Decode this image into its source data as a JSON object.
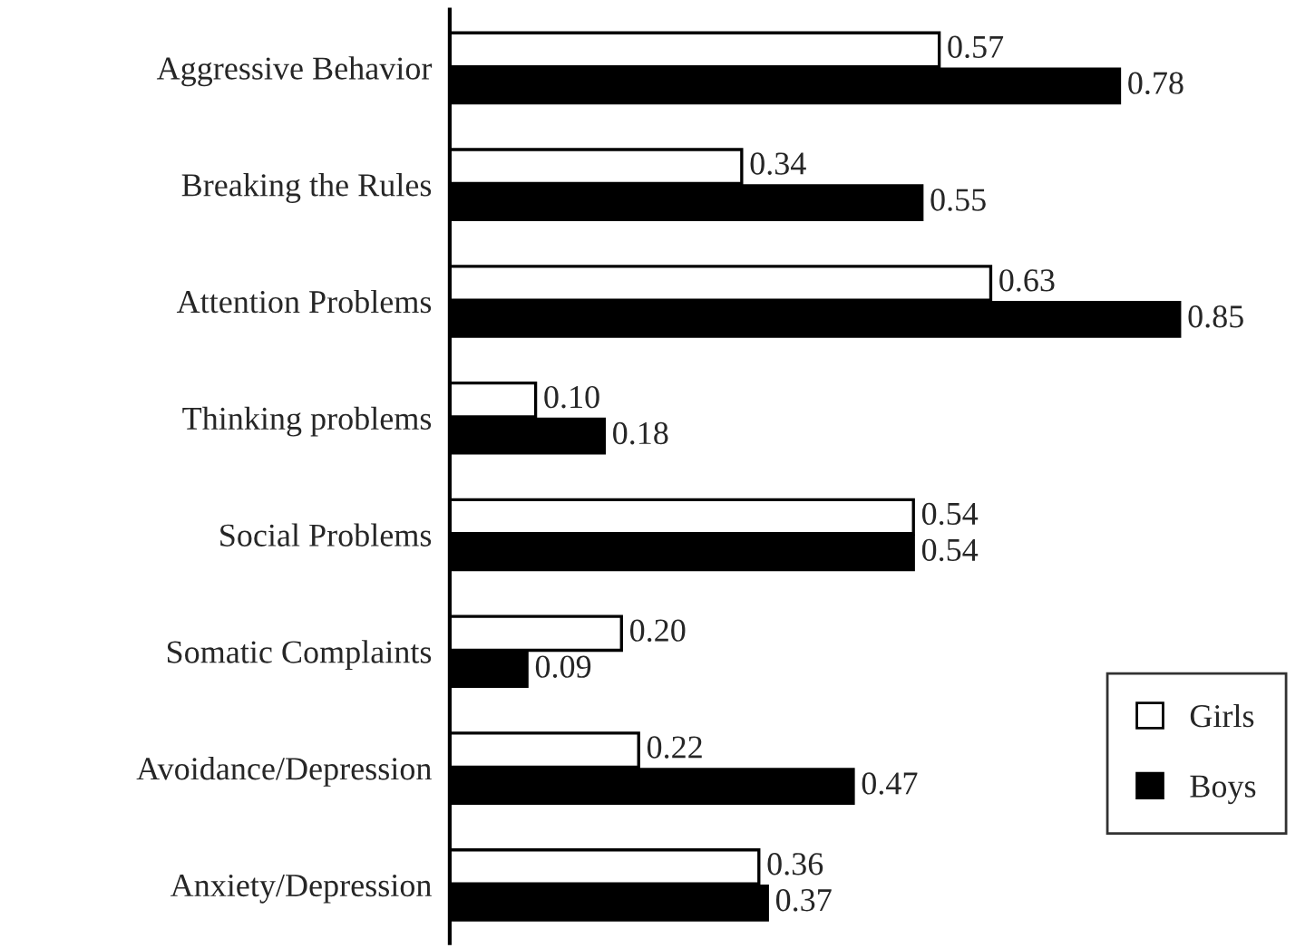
{
  "chart_data": {
    "type": "bar",
    "orientation": "horizontal",
    "categories": [
      "Aggressive Behavior",
      "Breaking the Rules",
      "Attention Problems",
      "Thinking problems",
      "Social Problems",
      "Somatic Complaints",
      "Avoidance/Depression",
      "Anxiety/Depression"
    ],
    "series": [
      {
        "name": "Girls",
        "color": "#ffffff",
        "values": [
          0.57,
          0.34,
          0.63,
          0.1,
          0.54,
          0.2,
          0.22,
          0.36
        ],
        "value_labels": [
          "0.57",
          "0.34",
          "0.63",
          "0.10",
          "0.54",
          "0.20",
          "0.22",
          "0.36"
        ]
      },
      {
        "name": "Boys",
        "color": "#000000",
        "values": [
          0.78,
          0.55,
          0.85,
          0.18,
          0.54,
          0.09,
          0.47,
          0.37
        ],
        "value_labels": [
          "0.78",
          "0.55",
          "0.85",
          "0.18",
          "0.54",
          "0.09",
          "0.47",
          "0.37"
        ]
      }
    ],
    "tick_labels": "y",
    "legend": "bottom right",
    "grid": false
  }
}
